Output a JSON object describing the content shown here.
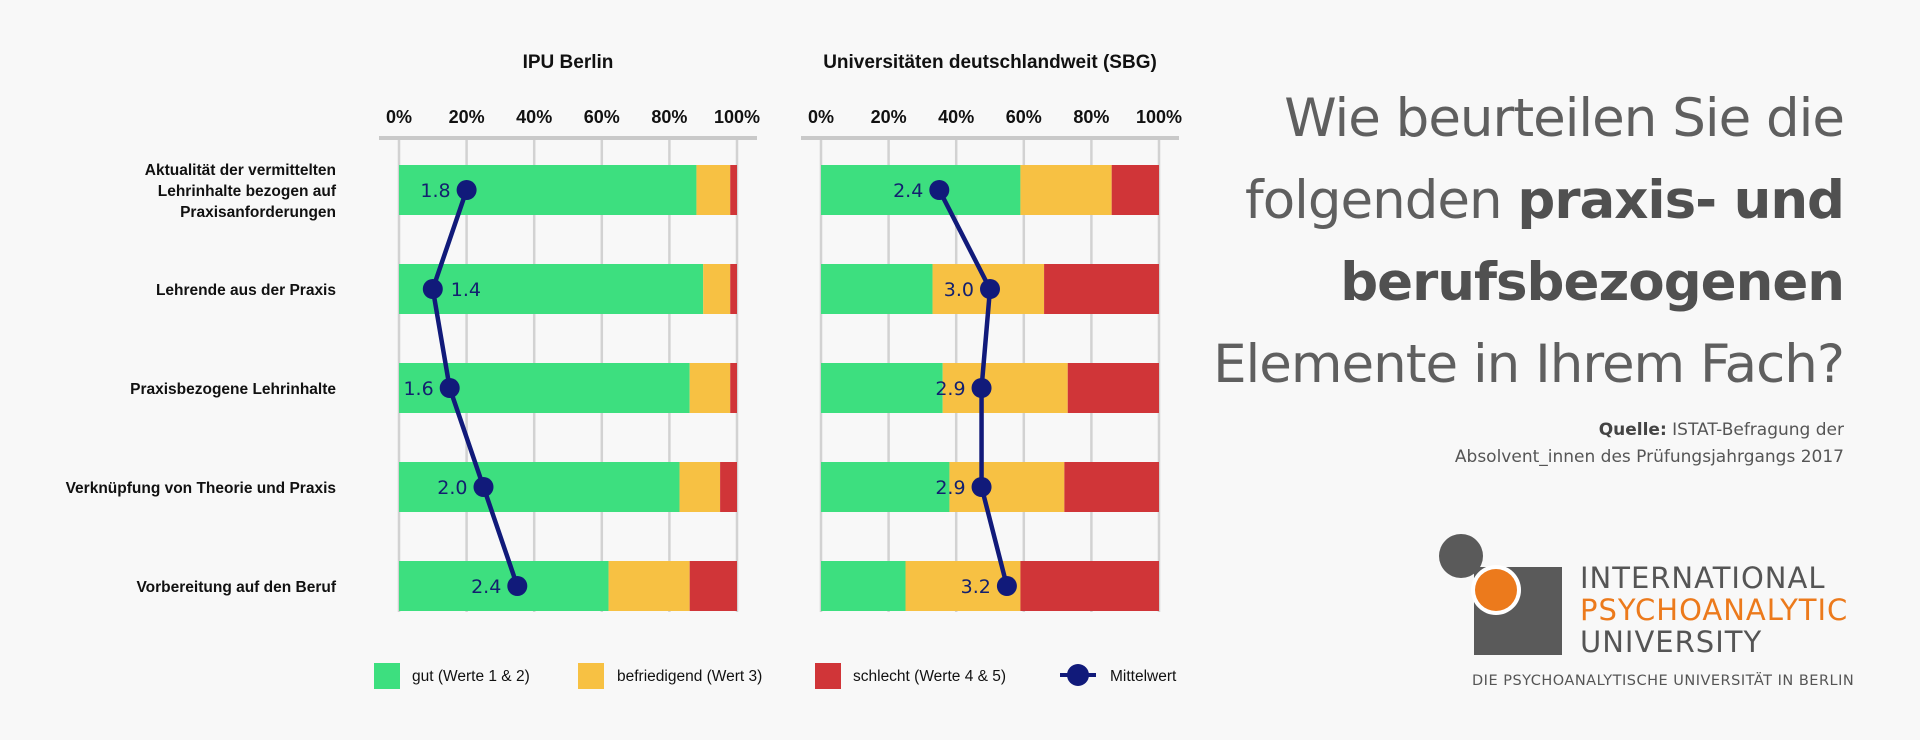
{
  "chart_data": {
    "type": "bar",
    "categories": [
      "Aktualität der vermittelten Lehrinhalte bezogen auf Praxisanforderungen",
      "Lehrende aus der Praxis",
      "Praxisbezogene Lehrinhalte",
      "Verknüpfung von Theorie und Praxis",
      "Vorbereitung auf den Beruf"
    ],
    "category_lines": [
      [
        "Aktualität der vermittelten",
        "Lehrinhalte bezogen auf",
        "Praxisanforderungen"
      ],
      [
        "Lehrende aus der Praxis"
      ],
      [
        "Praxisbezogene Lehrinhalte"
      ],
      [
        "Verknüpfung von Theorie und Praxis"
      ],
      [
        "Vorbereitung auf den Beruf"
      ]
    ],
    "stacked": true,
    "orientation": "horizontal",
    "xlim": [
      0,
      100
    ],
    "xticks": [
      "0%",
      "20%",
      "40%",
      "60%",
      "80%",
      "100%"
    ],
    "legend_position": "bottom",
    "legend": {
      "gut": "gut (Werte 1 & 2)",
      "befriedigend": "befriedigend (Wert 3)",
      "schlecht": "schlecht (Werte 4 & 5)",
      "mittelwert": "Mittelwert"
    },
    "colors": {
      "gut": "#3ddf7f",
      "befriedigend": "#f7c143",
      "schlecht": "#d03538",
      "mittelwert": "#111a7a",
      "grid": "#d2d2d2"
    },
    "panels": [
      {
        "title": "IPU Berlin",
        "gut": [
          88,
          90,
          86,
          83,
          62
        ],
        "befriedigend": [
          10,
          8,
          12,
          12,
          24
        ],
        "schlecht": [
          2,
          2,
          2,
          5,
          14
        ],
        "mean": [
          1.8,
          1.4,
          1.6,
          2.0,
          2.4
        ],
        "mean_labels": [
          "1.8",
          "1.4",
          "1.6",
          "2.0",
          "2.4"
        ]
      },
      {
        "title": "Universitäten deutschlandweit (SBG)",
        "gut": [
          59,
          33,
          36,
          38,
          25
        ],
        "befriedigend": [
          27,
          33,
          37,
          34,
          34
        ],
        "schlecht": [
          14,
          34,
          27,
          28,
          41
        ],
        "mean": [
          2.4,
          3.0,
          2.9,
          2.9,
          3.2
        ],
        "mean_labels": [
          "2.4",
          "3.0",
          "2.9",
          "2.9",
          "3.2"
        ]
      }
    ]
  },
  "question": {
    "line1": "Wie beurteilen Sie die",
    "line2_plain": "folgenden",
    "line2_bold": "praxis- und",
    "line3_bold": "berufsbezogenen",
    "line4": "Elemente in Ihrem Fach?"
  },
  "source": {
    "label": "Quelle:",
    "line1": "ISTAT-Befragung der",
    "line2": "Absolvent_innen des Prüfungsjahrgangs 2017"
  },
  "logo": {
    "line1": "INTERNATIONAL",
    "line2": "PSYCHOANALYTIC",
    "line3": "UNIVERSITY",
    "subtitle": "DIE PSYCHOANALYTISCHE UNIVERSITÄT IN BERLIN",
    "colors": {
      "orange": "#ec7a1c",
      "gray": "#5a5a5a",
      "text": "#555555"
    }
  }
}
